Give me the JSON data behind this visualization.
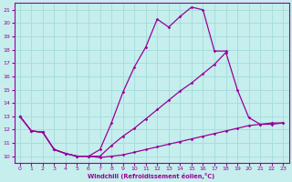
{
  "xlabel": "Windchill (Refroidissement éolien,°C)",
  "bg_color": "#c5eeed",
  "grid_color": "#a8dede",
  "line_color": "#990099",
  "xlim": [
    -0.5,
    23.5
  ],
  "ylim": [
    9.5,
    21.5
  ],
  "yticks": [
    10,
    11,
    12,
    13,
    14,
    15,
    16,
    17,
    18,
    19,
    20,
    21
  ],
  "xticks": [
    0,
    1,
    2,
    3,
    4,
    5,
    6,
    7,
    8,
    9,
    10,
    11,
    12,
    13,
    14,
    15,
    16,
    17,
    18,
    19,
    20,
    21,
    22,
    23
  ],
  "curve_top_x": [
    0,
    1,
    2,
    3,
    4,
    5,
    6,
    7,
    8,
    9,
    10,
    11,
    12,
    13,
    14,
    15,
    16,
    17,
    18
  ],
  "curve_top_y": [
    13.0,
    11.9,
    11.8,
    10.5,
    10.2,
    10.0,
    10.0,
    10.5,
    12.5,
    14.8,
    16.7,
    18.2,
    20.3,
    19.7,
    20.5,
    21.2,
    21.0,
    17.9,
    17.9
  ],
  "curve_mid_x": [
    0,
    1,
    2,
    3,
    4,
    5,
    6,
    7,
    8,
    9,
    10,
    11,
    12,
    13,
    14,
    15,
    16,
    17,
    18,
    19,
    20,
    21,
    22,
    23
  ],
  "curve_mid_y": [
    13.0,
    11.9,
    11.8,
    10.5,
    10.2,
    10.0,
    10.0,
    10.0,
    10.8,
    11.5,
    12.1,
    12.8,
    13.5,
    14.2,
    14.9,
    15.5,
    16.2,
    16.9,
    17.8,
    15.0,
    12.9,
    12.4,
    12.5,
    12.5
  ],
  "curve_bot_x": [
    0,
    1,
    2,
    3,
    4,
    5,
    6,
    7,
    8,
    9,
    10,
    11,
    12,
    13,
    14,
    15,
    16,
    17,
    18,
    19,
    20,
    21,
    22,
    23
  ],
  "curve_bot_y": [
    13.0,
    11.9,
    11.8,
    10.5,
    10.2,
    10.0,
    10.0,
    9.9,
    10.0,
    10.1,
    10.3,
    10.5,
    10.7,
    10.9,
    11.1,
    11.3,
    11.5,
    11.7,
    11.9,
    12.1,
    12.3,
    12.4,
    12.4,
    12.5
  ]
}
